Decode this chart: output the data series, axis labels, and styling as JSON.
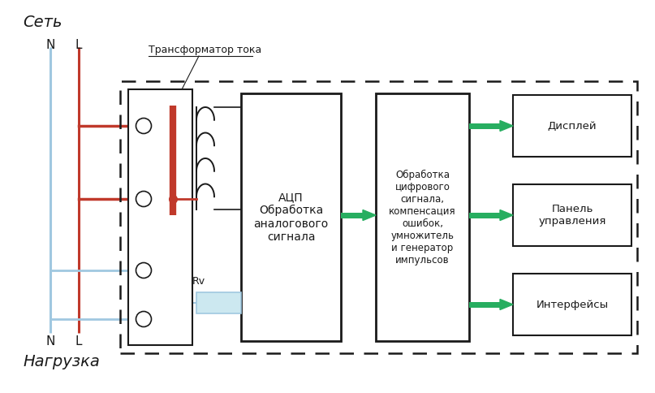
{
  "fig_width": 8.07,
  "fig_height": 4.84,
  "bg_color": "#ffffff",
  "title_seti": "Сеть",
  "title_nagruzka": "Нагрузка",
  "label_N": "N",
  "label_L": "L",
  "transformer_label": "Трансформатор тока",
  "rv_label": "Rv",
  "adc_label": "АЦП\nОбработка\nаналогового\nсигнала",
  "digital_label": "Обработка\nцифрового\nсигнала,\nкомпенсация\nошибок,\nумножитель\nи генератор\nимпульсов",
  "display_label": "Дисплей",
  "panel_label": "Панель\nуправления",
  "interface_label": "Интерфейсы",
  "color_N_wire": "#a0c8e0",
  "color_L_wire": "#c0392b",
  "color_green": "#27ae60",
  "color_black": "#1a1a1a",
  "color_rv_fill": "#cce8f0"
}
